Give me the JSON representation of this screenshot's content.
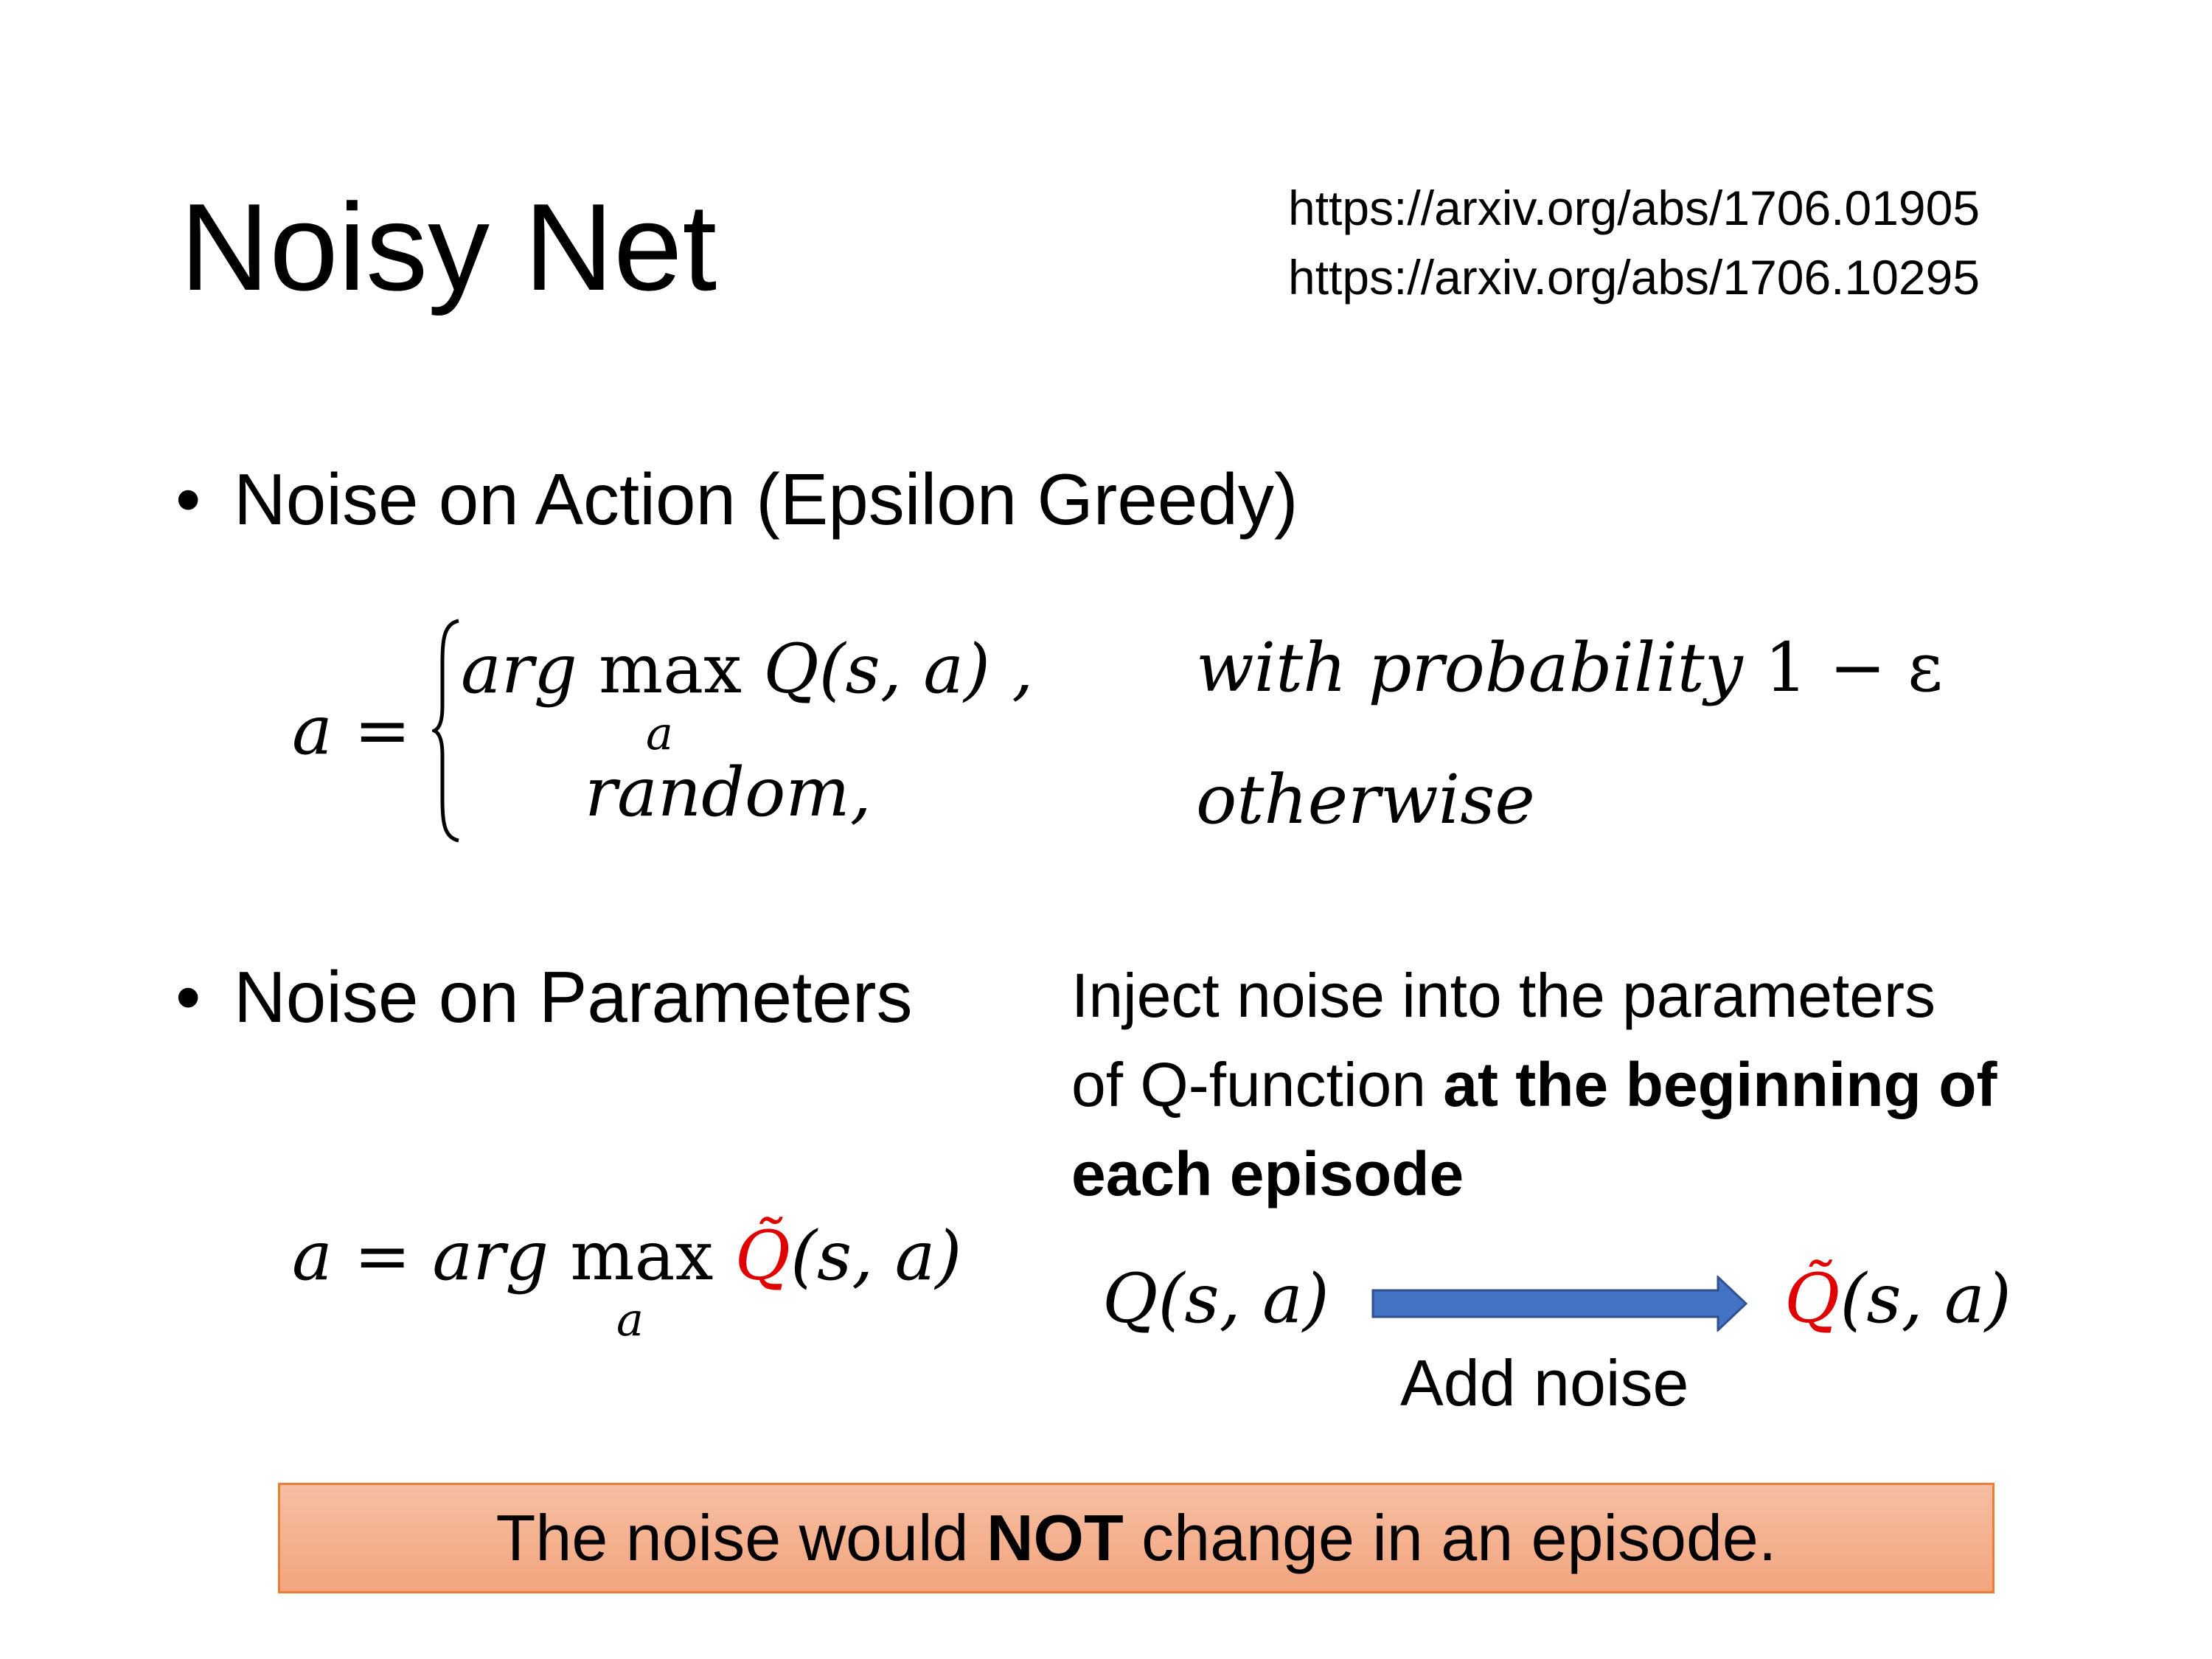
{
  "slide": {
    "title": "Noisy Net",
    "references": [
      "https://arxiv.org/abs/1706.01905",
      "https://arxiv.org/abs/1706.10295"
    ],
    "bullets": [
      {
        "label": "Noise on Action (Epsilon Greedy)"
      },
      {
        "label": "Noise on Parameters"
      }
    ],
    "bullet_symbol": "•",
    "epsilon_greedy": {
      "lhs": "a =",
      "case1_expr_prefix": "arg",
      "case1_max": "max",
      "case1_sub": "a",
      "case1_func": "Q(s, a) ,",
      "case1_condition": "with probability",
      "case1_condition_value": "1 − ε",
      "case2_expr": "random,",
      "case2_condition": "otherwise"
    },
    "noisy_formula": {
      "lhs": "a = arg",
      "max": "max",
      "sub": "a",
      "qtilde": "Q̃",
      "args": "(s, a)"
    },
    "description": {
      "line1": "Inject noise into the parameters",
      "line2_normal": "of Q-function ",
      "line2_bold": "at the beginning of",
      "line3_bold": "each episode"
    },
    "diagram": {
      "from_q": "Q",
      "from_args": "(s, a)",
      "to_q": "Q̃",
      "to_args": "(s, a)",
      "arrow_label": "Add noise",
      "arrow_color": "#4472c4",
      "highlight_color": "#e00000"
    },
    "callout": {
      "prefix": "The noise would ",
      "bold": "NOT",
      "suffix": " change in an episode.",
      "fill": "#f4b183",
      "border": "#ed7d31"
    }
  }
}
